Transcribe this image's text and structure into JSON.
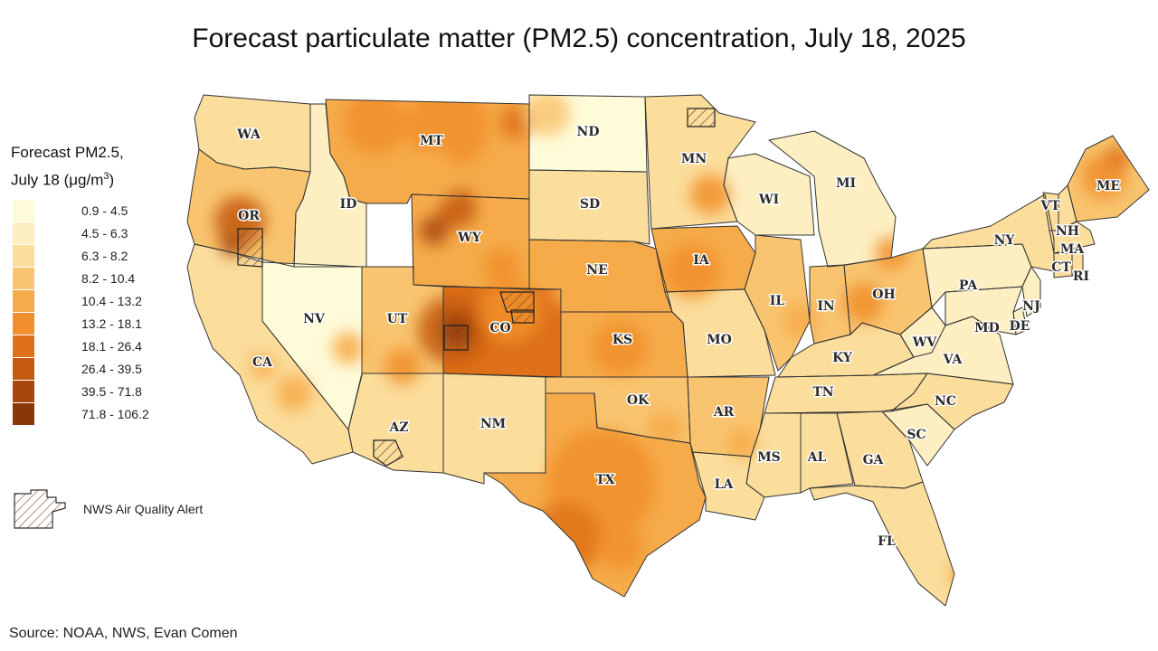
{
  "title": "Forecast particulate matter (PM2.5) concentration, July 18, 2025",
  "legend": {
    "title_line1": "Forecast PM2.5,",
    "title_line2_prefix": "July 18 (μg/m",
    "title_line2_sup": "3",
    "title_line2_suffix": ")",
    "bins": [
      {
        "label": "0.9 - 4.5",
        "color": "#fefbd9"
      },
      {
        "label": "4.5 - 6.3",
        "color": "#fdefc2"
      },
      {
        "label": "6.3 - 8.2",
        "color": "#fbdd9c"
      },
      {
        "label": "8.2 - 10.4",
        "color": "#f9c46f"
      },
      {
        "label": "10.4 - 13.2",
        "color": "#f6ab4a"
      },
      {
        "label": "13.2 - 18.1",
        "color": "#f08f2b"
      },
      {
        "label": "18.1 - 26.4",
        "color": "#de7119"
      },
      {
        "label": "26.4 - 39.5",
        "color": "#c45a0f"
      },
      {
        "label": "39.5 - 71.8",
        "color": "#a8470b"
      },
      {
        "label": "71.8 - 106.2",
        "color": "#8a3609"
      }
    ],
    "alert_label": "NWS Air Quality Alert"
  },
  "source": "Source: NOAA, NWS, Evan Comen",
  "states": [
    {
      "abbr": "WA",
      "bin": 2
    },
    {
      "abbr": "OR",
      "bin": 3
    },
    {
      "abbr": "CA",
      "bin": 2
    },
    {
      "abbr": "ID",
      "bin": 1
    },
    {
      "abbr": "NV",
      "bin": 0
    },
    {
      "abbr": "MT",
      "bin": 4
    },
    {
      "abbr": "WY",
      "bin": 4
    },
    {
      "abbr": "UT",
      "bin": 3
    },
    {
      "abbr": "CO",
      "bin": 6
    },
    {
      "abbr": "AZ",
      "bin": 2
    },
    {
      "abbr": "NM",
      "bin": 2
    },
    {
      "abbr": "ND",
      "bin": 0
    },
    {
      "abbr": "SD",
      "bin": 2
    },
    {
      "abbr": "NE",
      "bin": 4
    },
    {
      "abbr": "KS",
      "bin": 4
    },
    {
      "abbr": "OK",
      "bin": 3
    },
    {
      "abbr": "TX",
      "bin": 4
    },
    {
      "abbr": "MN",
      "bin": 2
    },
    {
      "abbr": "IA",
      "bin": 4
    },
    {
      "abbr": "MO",
      "bin": 2
    },
    {
      "abbr": "AR",
      "bin": 3
    },
    {
      "abbr": "LA",
      "bin": 2
    },
    {
      "abbr": "WI",
      "bin": 1
    },
    {
      "abbr": "IL",
      "bin": 3
    },
    {
      "abbr": "MI",
      "bin": 1
    },
    {
      "abbr": "IN",
      "bin": 3
    },
    {
      "abbr": "OH",
      "bin": 3
    },
    {
      "abbr": "KY",
      "bin": 2
    },
    {
      "abbr": "TN",
      "bin": 2
    },
    {
      "abbr": "MS",
      "bin": 2
    },
    {
      "abbr": "AL",
      "bin": 2
    },
    {
      "abbr": "GA",
      "bin": 2
    },
    {
      "abbr": "FL",
      "bin": 2
    },
    {
      "abbr": "SC",
      "bin": 1
    },
    {
      "abbr": "NC",
      "bin": 2
    },
    {
      "abbr": "VA",
      "bin": 1
    },
    {
      "abbr": "WV",
      "bin": 1
    },
    {
      "abbr": "PA",
      "bin": 1
    },
    {
      "abbr": "NY",
      "bin": 2
    },
    {
      "abbr": "VT",
      "bin": 2
    },
    {
      "abbr": "NH",
      "bin": 2
    },
    {
      "abbr": "ME",
      "bin": 3
    },
    {
      "abbr": "MA",
      "bin": 2
    },
    {
      "abbr": "CT",
      "bin": 2
    },
    {
      "abbr": "RI",
      "bin": 2
    },
    {
      "abbr": "NJ",
      "bin": 1
    },
    {
      "abbr": "DE",
      "bin": 1
    },
    {
      "abbr": "MD",
      "bin": 1
    }
  ]
}
